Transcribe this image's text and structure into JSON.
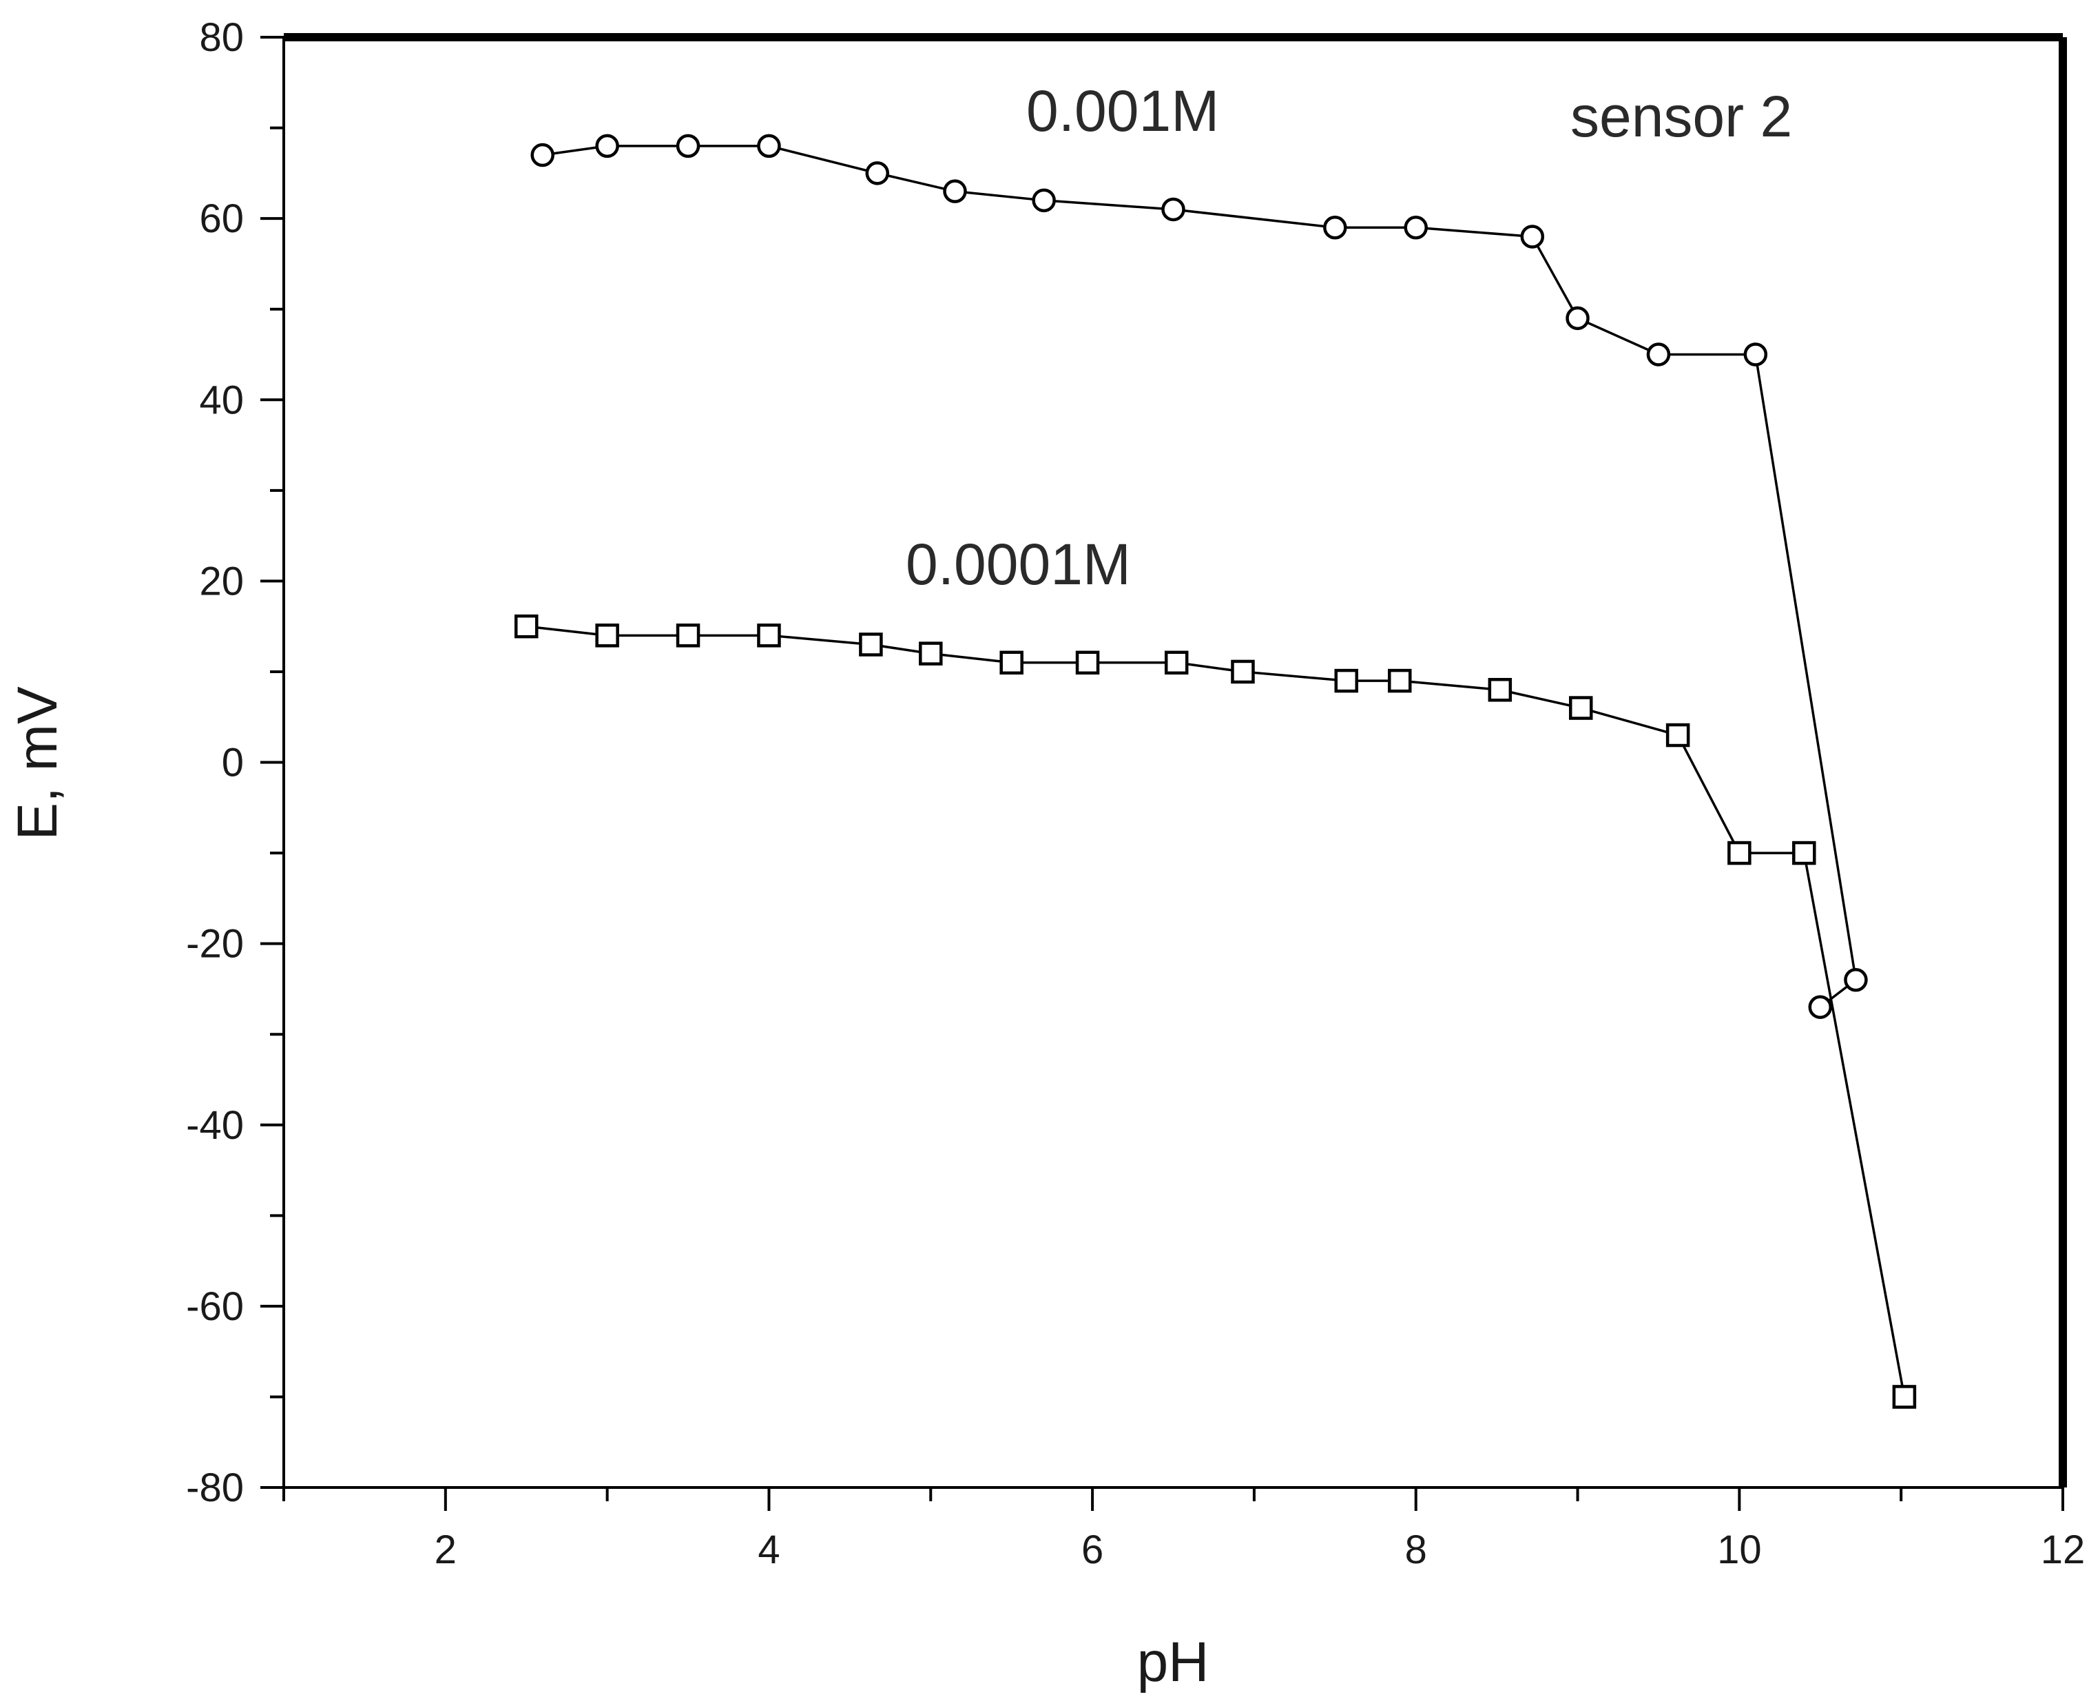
{
  "chart_data": {
    "type": "line",
    "title": "",
    "xlabel": "pH",
    "ylabel": "E, mV",
    "xlim": [
      1,
      12
    ],
    "ylim": [
      -80,
      80
    ],
    "x_ticks": [
      2,
      4,
      6,
      8,
      10,
      12
    ],
    "y_ticks": [
      80,
      60,
      40,
      20,
      0,
      -20,
      -40,
      -60,
      -80
    ],
    "x_tick_labels": [
      "2",
      "4",
      "6",
      "8",
      "10",
      "12"
    ],
    "y_tick_labels": [
      "80",
      "60",
      "40",
      "20",
      "0",
      "-20",
      "-40",
      "-60",
      "-80"
    ],
    "grid": false,
    "legend": "none",
    "annotations": {
      "sensor": "sensor 2",
      "series_a_label": "0.001M",
      "series_b_label": "0.0001M"
    },
    "series": [
      {
        "name": "0.001M",
        "marker": "circle",
        "x": [
          2.6,
          3.0,
          3.5,
          4.0,
          4.67,
          5.15,
          5.7,
          6.5,
          7.5,
          8.0,
          8.72,
          9.0,
          9.5,
          10.1,
          10.72,
          10.5
        ],
        "y": [
          67,
          68,
          68,
          68,
          65,
          63,
          62,
          61,
          59,
          59,
          58,
          49,
          45,
          45,
          -24,
          -27
        ]
      },
      {
        "name": "0.0001M",
        "marker": "square",
        "x": [
          2.5,
          3.0,
          3.5,
          4.0,
          4.63,
          5.0,
          5.5,
          5.97,
          6.52,
          6.93,
          7.57,
          7.9,
          8.52,
          9.02,
          9.62,
          10.0,
          10.4,
          11.02
        ],
        "y": [
          15,
          14,
          14,
          14,
          13,
          12,
          11,
          11,
          11,
          10,
          9,
          9,
          8,
          6,
          3,
          -10,
          -10,
          -70
        ]
      }
    ]
  }
}
